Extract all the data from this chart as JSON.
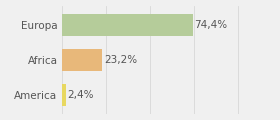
{
  "categories": [
    "Europa",
    "Africa",
    "America"
  ],
  "values": [
    74.4,
    23.2,
    2.4
  ],
  "bar_colors": [
    "#b5cc9a",
    "#e8b87a",
    "#e8d860"
  ],
  "label_format": [
    "74,4%",
    "23,2%",
    "2,4%"
  ],
  "xlim": [
    0,
    105
  ],
  "background_color": "#f0f0f0",
  "bar_height": 0.62,
  "label_fontsize": 7.5,
  "tick_fontsize": 7.5,
  "grid_color": "#d8d8d8",
  "text_color": "#555555"
}
